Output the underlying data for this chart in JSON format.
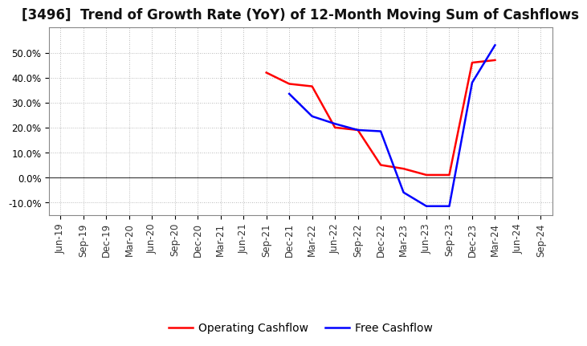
{
  "title": "[3496]  Trend of Growth Rate (YoY) of 12-Month Moving Sum of Cashflows",
  "title_fontsize": 12,
  "background_color": "#ffffff",
  "plot_bg_color": "#ffffff",
  "grid_color": "#999999",
  "x_labels": [
    "Jun-19",
    "Sep-19",
    "Dec-19",
    "Mar-20",
    "Jun-20",
    "Sep-20",
    "Dec-20",
    "Mar-21",
    "Jun-21",
    "Sep-21",
    "Dec-21",
    "Mar-22",
    "Jun-22",
    "Sep-22",
    "Dec-22",
    "Mar-23",
    "Jun-23",
    "Sep-23",
    "Dec-23",
    "Mar-24",
    "Jun-24",
    "Sep-24"
  ],
  "op_x": [
    9,
    10,
    11,
    12,
    13,
    14,
    15,
    16,
    17,
    18,
    19
  ],
  "op_y": [
    0.42,
    0.375,
    0.365,
    0.2,
    0.19,
    0.05,
    0.035,
    0.01,
    0.01,
    0.46,
    0.47
  ],
  "fc_x": [
    10,
    11,
    12,
    13,
    14,
    15,
    16,
    17,
    18,
    19
  ],
  "fc_y": [
    0.335,
    0.245,
    0.215,
    0.19,
    0.185,
    -0.06,
    -0.115,
    -0.115,
    0.38,
    0.53
  ],
  "op_color": "#ff0000",
  "fc_color": "#0000ff",
  "op_label": "Operating Cashflow",
  "fc_label": "Free Cashflow",
  "linewidth": 1.8,
  "ylim": [
    -0.15,
    0.6
  ],
  "yticks": [
    -0.1,
    0.0,
    0.1,
    0.2,
    0.3,
    0.4,
    0.5
  ],
  "legend_fontsize": 10,
  "tick_fontsize": 8.5
}
